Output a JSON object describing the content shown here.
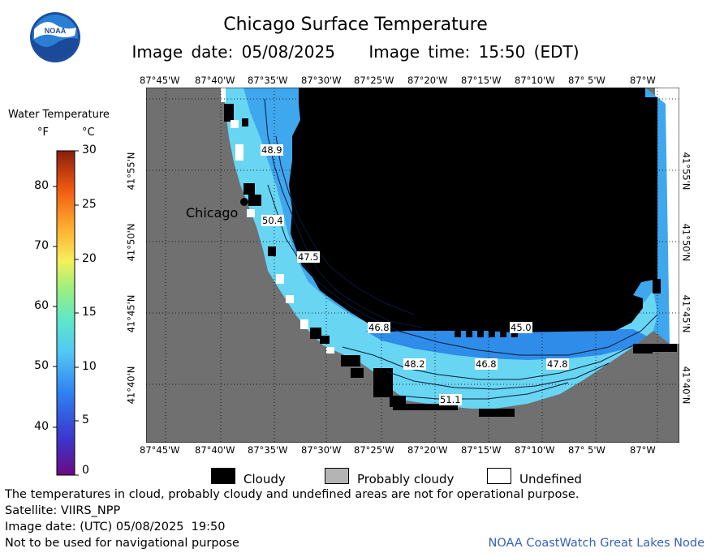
{
  "title": "Chicago Surface Temperature",
  "subtitle": "Image date: 05/08/2025    Image time: 15:50 (EDT)",
  "logo_text": "NOAA",
  "scale": {
    "title": "Water Temperature",
    "unit_f": "°F",
    "unit_c": "°C",
    "f_ticks": [
      "80",
      "70",
      "60",
      "50",
      "40"
    ],
    "c_ticks": [
      "30",
      "25",
      "20",
      "15",
      "10",
      "5",
      "0"
    ],
    "range_c": [
      0,
      30
    ],
    "range_f": [
      32,
      86
    ]
  },
  "map": {
    "lon_labels": [
      "87°45'W",
      "87°40'W",
      "87°35'W",
      "87°30'W",
      "87°25'W",
      "87°20'W",
      "87°15'W",
      "87°10'W",
      "87° 5'W",
      "87°W"
    ],
    "lat_labels": [
      "41°55'N",
      "41°50'N",
      "41°45'N",
      "41°40'N"
    ],
    "city_label": "Chicago",
    "isotherm_labels": [
      "48.9",
      "50.4",
      "47.5",
      "46.8",
      "45.0",
      "48.2",
      "46.8",
      "47.8",
      "51.1"
    ],
    "colors": {
      "land": "#707070",
      "cloud": "#000000",
      "water_cool": "#2f8ce8",
      "water_mid": "#47b7f0",
      "water_warm": "#6fdcef"
    }
  },
  "legend": {
    "cloudy": "Cloudy",
    "probably_cloudy": "Probably cloudy",
    "undefined": "Undefined",
    "colors": {
      "cloudy": "#000000",
      "probably_cloudy": "#b4b4b4",
      "undefined": "#ffffff"
    }
  },
  "footer": {
    "line1": "The temperatures in cloud, probably cloudy and undefined areas are not for operational purpose.",
    "line2": "Satellite: VIIRS_NPP",
    "line3": "Image date: (UTC) 05/08/2025  19:50",
    "line4": "Not to be used for navigational purpose",
    "credit": "NOAA CoastWatch Great Lakes Node"
  }
}
